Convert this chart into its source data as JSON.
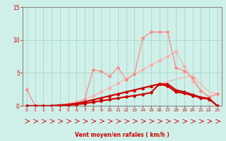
{
  "background_color": "#cef0e8",
  "grid_color": "#aad4cc",
  "xlim": [
    -0.5,
    23.5
  ],
  "ylim": [
    0,
    15
  ],
  "xticks": [
    0,
    1,
    2,
    3,
    4,
    5,
    6,
    7,
    8,
    9,
    10,
    11,
    12,
    13,
    14,
    15,
    16,
    17,
    18,
    19,
    20,
    21,
    22,
    23
  ],
  "yticks": [
    0,
    5,
    10,
    15
  ],
  "xlabel": "Vent moyen/en rafales ( km/h )",
  "tick_color": "#cc0000",
  "label_color": "#cc0000",
  "axis_color": "#888888",
  "arrow_color": "#cc0000",
  "series": [
    {
      "x": [
        0,
        1,
        2,
        3,
        4,
        5,
        6,
        7,
        8,
        9,
        10,
        11,
        12,
        13,
        14,
        15,
        16,
        17,
        18,
        19,
        20,
        21,
        22,
        23
      ],
      "y": [
        0,
        0,
        0,
        0,
        0.1,
        0.2,
        0.4,
        0.6,
        0.9,
        1.1,
        1.4,
        1.7,
        2.0,
        2.3,
        2.6,
        3.0,
        3.3,
        3.7,
        4.0,
        4.3,
        4.6,
        3.3,
        2.1,
        1.8
      ],
      "color": "#ffaaaa",
      "linewidth": 0.8,
      "marker": null,
      "linestyle": "-"
    },
    {
      "x": [
        0,
        1,
        2,
        3,
        4,
        5,
        6,
        7,
        8,
        9,
        10,
        11,
        12,
        13,
        14,
        15,
        16,
        17,
        18,
        19,
        20,
        21,
        22,
        23
      ],
      "y": [
        0,
        0,
        0,
        0,
        0.1,
        0.3,
        0.6,
        1.0,
        1.5,
        2.1,
        2.7,
        3.4,
        4.1,
        4.8,
        5.5,
        6.2,
        6.9,
        7.5,
        8.2,
        6.0,
        3.8,
        2.3,
        1.4,
        1.8
      ],
      "color": "#ffaaaa",
      "linewidth": 0.8,
      "marker": "D",
      "markersize": 2,
      "linestyle": "-"
    },
    {
      "x": [
        0,
        1,
        2,
        3,
        4,
        5,
        6,
        7,
        8,
        9,
        10,
        11,
        12,
        13,
        14,
        15,
        16,
        17,
        18,
        19,
        20,
        21,
        22,
        23
      ],
      "y": [
        2.5,
        0,
        0,
        0,
        0,
        0.1,
        0.3,
        1.0,
        5.5,
        5.2,
        4.5,
        5.8,
        4.0,
        4.8,
        10.3,
        11.2,
        11.2,
        11.2,
        5.8,
        5.3,
        4.3,
        2.3,
        1.3,
        1.8
      ],
      "color": "#ff8888",
      "linewidth": 0.9,
      "marker": "D",
      "markersize": 2,
      "linestyle": "-"
    },
    {
      "x": [
        0,
        1,
        2,
        3,
        4,
        5,
        6,
        7,
        8,
        9,
        10,
        11,
        12,
        13,
        14,
        15,
        16,
        17,
        18,
        19,
        20,
        21,
        22,
        23
      ],
      "y": [
        0,
        0,
        0,
        0,
        0.05,
        0.1,
        0.2,
        0.35,
        0.55,
        0.75,
        0.95,
        1.15,
        1.35,
        1.55,
        1.75,
        2.0,
        3.3,
        3.0,
        2.1,
        1.9,
        1.55,
        1.2,
        1.0,
        0.0
      ],
      "color": "#cc0000",
      "linewidth": 1.5,
      "marker": "D",
      "markersize": 2,
      "linestyle": "-"
    },
    {
      "x": [
        0,
        1,
        2,
        3,
        4,
        5,
        6,
        7,
        8,
        9,
        10,
        11,
        12,
        13,
        14,
        15,
        16,
        17,
        18,
        19,
        20,
        21,
        22,
        23
      ],
      "y": [
        0,
        0,
        0,
        0,
        0.1,
        0.2,
        0.35,
        0.6,
        0.9,
        1.2,
        1.5,
        1.8,
        2.1,
        2.4,
        2.7,
        3.0,
        3.3,
        3.3,
        2.4,
        2.1,
        1.7,
        1.3,
        1.1,
        0.0
      ],
      "color": "#cc0000",
      "linewidth": 1.5,
      "marker": "^",
      "markersize": 2.5,
      "linestyle": "-"
    }
  ]
}
